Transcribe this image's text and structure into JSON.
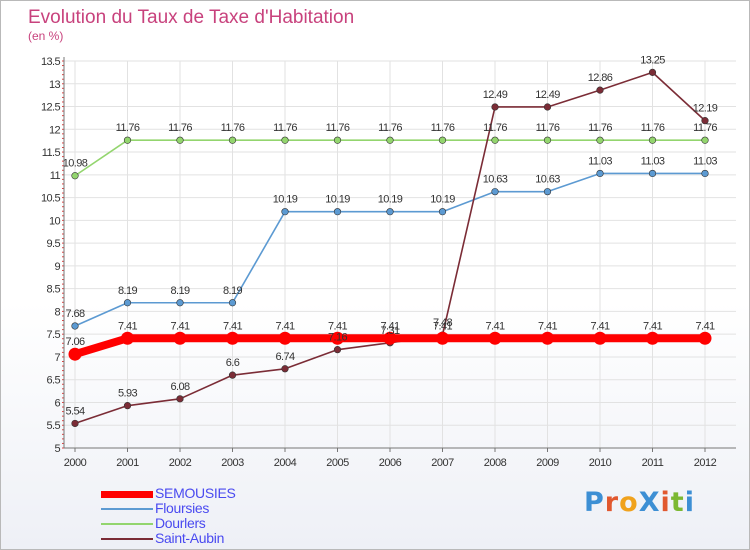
{
  "title": "Evolution du Taux de Taxe d'Habitation",
  "unit_label": "(en %)",
  "logo": "ProXiti",
  "colors": {
    "title": "#c8427d",
    "axis": "#777777",
    "grid": "#e2e2e2",
    "legend_text": "#4a4af0"
  },
  "chart_data": {
    "type": "line",
    "title": "Evolution du Taux de Taxe d'Habitation",
    "ylabel": "(en %)",
    "xlabel": "",
    "x": [
      "2000",
      "2001",
      "2002",
      "2003",
      "2004",
      "2005",
      "2006",
      "2007",
      "2008",
      "2009",
      "2010",
      "2011",
      "2012"
    ],
    "ylim": [
      5,
      13.5
    ],
    "yticks": [
      5,
      5.5,
      6,
      6.5,
      7,
      7.5,
      8,
      8.5,
      9,
      9.5,
      10,
      10.5,
      11,
      11.5,
      12,
      12.5,
      13,
      13.5
    ],
    "grid": true,
    "legend_position": "bottom-left",
    "series": [
      {
        "name": "SEMOUSIES",
        "color": "#ff0000",
        "emphasis": true,
        "values": [
          7.06,
          7.41,
          7.41,
          7.41,
          7.41,
          7.41,
          7.41,
          7.41,
          7.41,
          7.41,
          7.41,
          7.41,
          7.41
        ]
      },
      {
        "name": "Floursies",
        "color": "#5c9ad2",
        "values": [
          7.68,
          8.19,
          8.19,
          8.19,
          10.19,
          10.19,
          10.19,
          10.19,
          10.63,
          10.63,
          11.03,
          11.03,
          11.03
        ]
      },
      {
        "name": "Dourlers",
        "color": "#93d56e",
        "values": [
          10.98,
          11.76,
          11.76,
          11.76,
          11.76,
          11.76,
          11.76,
          11.76,
          11.76,
          11.76,
          11.76,
          11.76,
          11.76
        ]
      },
      {
        "name": "Saint-Aubin",
        "color": "#7b2c36",
        "values": [
          5.54,
          5.93,
          6.08,
          6.6,
          6.74,
          7.16,
          7.31,
          7.48,
          12.49,
          12.49,
          12.86,
          13.25,
          12.19
        ]
      }
    ]
  }
}
